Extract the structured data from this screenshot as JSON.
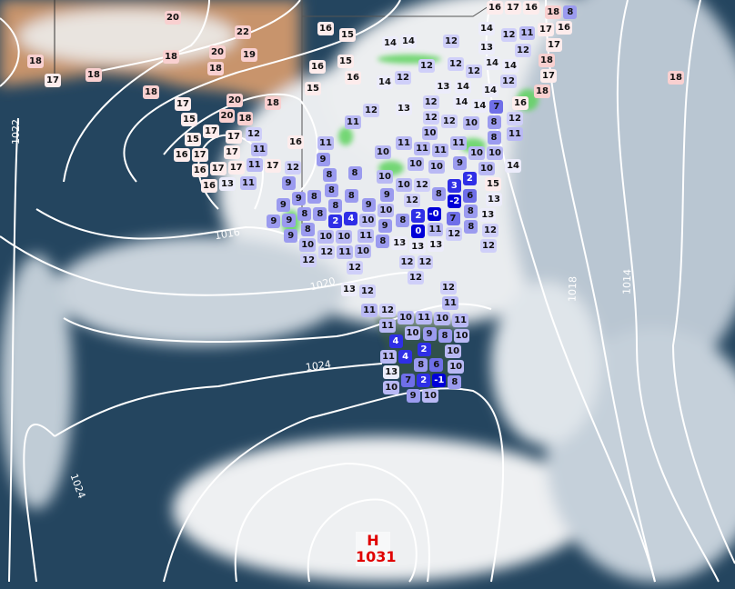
{
  "map": {
    "stations_temps": [
      20,
      22,
      20,
      19,
      18,
      18,
      18,
      17,
      18,
      18,
      17,
      15,
      20,
      18,
      20,
      18,
      17,
      17,
      12,
      15,
      17,
      16,
      17,
      11,
      11,
      17,
      17,
      16,
      17,
      11,
      16,
      13,
      16,
      12,
      9,
      11,
      11,
      10,
      9,
      8,
      10,
      8,
      9,
      8,
      8,
      8,
      9,
      10,
      12,
      8,
      12,
      9,
      8,
      9,
      10,
      8,
      8,
      2,
      4,
      9,
      9,
      8,
      10,
      10,
      9,
      8,
      2,
      0,
      7,
      8,
      8,
      12,
      12,
      13,
      13,
      15,
      6,
      -2,
      3,
      2,
      9,
      10,
      10,
      14,
      10,
      8,
      10,
      8,
      12,
      11,
      11,
      11,
      11,
      10,
      11,
      10,
      10,
      12,
      12,
      11,
      10,
      10,
      9,
      12,
      12,
      12,
      11,
      11,
      13,
      13,
      13,
      12,
      12,
      12,
      0,
      8,
      10,
      12,
      12,
      12,
      11,
      12,
      11,
      10,
      11,
      10,
      10,
      11,
      11,
      10,
      9,
      8,
      10,
      4,
      2,
      11,
      4,
      8,
      6,
      10,
      -1,
      8,
      2,
      7,
      13,
      10,
      10,
      9,
      13,
      16,
      17,
      16,
      18,
      8,
      16,
      15,
      14,
      14,
      12,
      14,
      12,
      11,
      17,
      16,
      13,
      12,
      17,
      16,
      15,
      12,
      12,
      14,
      14,
      18,
      17,
      16,
      14,
      12,
      12,
      12,
      18,
      15,
      13,
      14,
      14,
      7,
      14,
      16,
      12,
      13,
      12,
      18,
      14
    ],
    "isobar_labels": [
      "1022",
      "1016",
      "1020",
      "1024",
      "1024",
      "1018",
      "1014"
    ],
    "high_pressure": {
      "symbol": "H",
      "value": "1031"
    },
    "colors": {
      "ocean": "#24455f",
      "desert": "#c8946c",
      "vegetation": "#5fd35f",
      "cloud": "#f2f4f6",
      "isobar": "#ffffff",
      "high": "#e00000",
      "cold": "#0000e0",
      "warm": "#f9d4d4"
    }
  }
}
